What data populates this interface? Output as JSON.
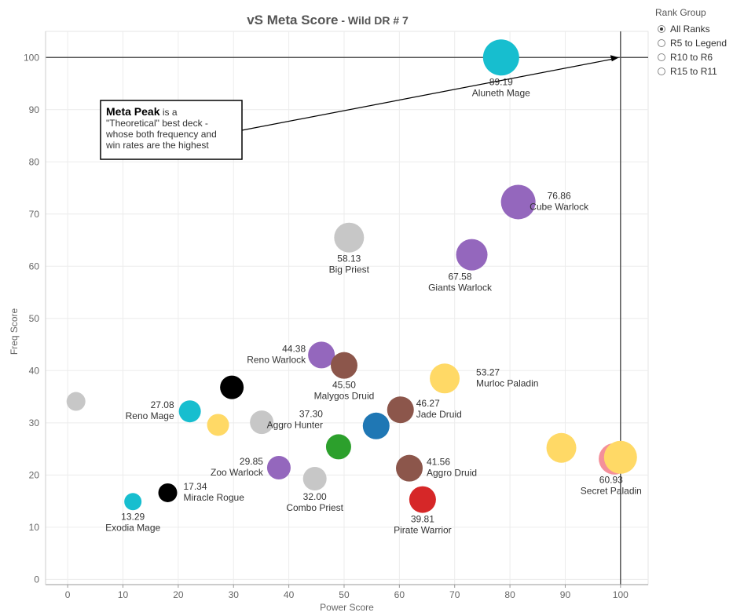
{
  "title": {
    "main": "vS Meta Score",
    "sub": " - Wild DR # 7"
  },
  "legend": {
    "title": "Rank Group",
    "options": [
      {
        "label": "All Ranks",
        "selected": true
      },
      {
        "label": "R5 to Legend",
        "selected": false
      },
      {
        "label": "R10 to R6",
        "selected": false
      },
      {
        "label": "R15 to R11",
        "selected": false
      }
    ]
  },
  "annotation": {
    "bold": "Meta Peak",
    "lines": [
      " is a",
      "\"Theoretical\" best deck -",
      "whose both frequency and",
      "win rates are the highest"
    ]
  },
  "chart_data": {
    "type": "scatter",
    "xlabel": "Power Score",
    "ylabel": "Freq Score",
    "xlim": [
      -4,
      105
    ],
    "ylim": [
      -1,
      105
    ],
    "xticks": [
      0,
      10,
      20,
      30,
      40,
      50,
      60,
      70,
      80,
      90,
      100
    ],
    "yticks": [
      0,
      10,
      20,
      30,
      40,
      50,
      60,
      70,
      80,
      90,
      100
    ],
    "grid": true,
    "reference_lines": {
      "x": 100,
      "y": 100
    },
    "colors": {
      "cyan": "#17becf",
      "purple": "#9467bd",
      "brown": "#8c564b",
      "gray": "#c7c7c7",
      "black": "#000000",
      "yellow": "#ffd966",
      "blue": "#1f77b4",
      "green": "#2ca02c",
      "red": "#d62728",
      "pink": "#f4909a"
    },
    "points": [
      {
        "x": 1.5,
        "y": 34.1,
        "color": "gray",
        "size": 12,
        "value": "",
        "name": ""
      },
      {
        "x": 11.8,
        "y": 14.9,
        "color": "cyan",
        "size": 11,
        "value": "13.29",
        "name": "Exodia Mage"
      },
      {
        "x": 18.1,
        "y": 16.6,
        "color": "black",
        "size": 12,
        "value": "17.34",
        "name": "Miracle Rogue"
      },
      {
        "x": 22.1,
        "y": 32.2,
        "color": "cyan",
        "size": 14,
        "value": "27.08",
        "name": "Reno Mage"
      },
      {
        "x": 27.2,
        "y": 29.6,
        "color": "yellow",
        "size": 14,
        "value": "",
        "name": ""
      },
      {
        "x": 29.7,
        "y": 36.8,
        "color": "black",
        "size": 15,
        "value": "",
        "name": ""
      },
      {
        "x": 35.1,
        "y": 30.1,
        "color": "gray",
        "size": 15,
        "value": "",
        "name": ""
      },
      {
        "x": 38.2,
        "y": 21.4,
        "color": "purple",
        "size": 15,
        "value": "29.85",
        "name": "Zoo Warlock"
      },
      {
        "x": 44.7,
        "y": 19.3,
        "color": "gray",
        "size": 15,
        "value": "32.00",
        "name": "Combo Priest"
      },
      {
        "x": 45.9,
        "y": 43.0,
        "color": "purple",
        "size": 17,
        "value": "44.38",
        "name": "Reno Warlock"
      },
      {
        "x": 49.0,
        "y": 25.4,
        "color": "green",
        "size": 16,
        "value": "37.30",
        "name": "Aggro Hunter"
      },
      {
        "x": 50.0,
        "y": 41.0,
        "color": "brown",
        "size": 17,
        "value": "45.50",
        "name": "Malygos Druid"
      },
      {
        "x": 50.9,
        "y": 65.5,
        "color": "gray",
        "size": 19,
        "value": "58.13",
        "name": "Big Priest"
      },
      {
        "x": 55.8,
        "y": 29.4,
        "color": "blue",
        "size": 17,
        "value": "",
        "name": ""
      },
      {
        "x": 60.2,
        "y": 32.5,
        "color": "brown",
        "size": 17,
        "value": "46.27",
        "name": "Jade Druid"
      },
      {
        "x": 61.8,
        "y": 21.3,
        "color": "brown",
        "size": 17,
        "value": "41.56",
        "name": "Aggro Druid"
      },
      {
        "x": 64.2,
        "y": 15.3,
        "color": "red",
        "size": 17,
        "value": "39.81",
        "name": "Pirate Warrior"
      },
      {
        "x": 68.2,
        "y": 38.5,
        "color": "yellow",
        "size": 19,
        "value": "53.27",
        "name": "Murloc Paladin"
      },
      {
        "x": 73.1,
        "y": 62.2,
        "color": "purple",
        "size": 20,
        "value": "67.58",
        "name": "Giants Warlock"
      },
      {
        "x": 78.4,
        "y": 100.0,
        "color": "cyan",
        "size": 23,
        "value": "89.19",
        "name": "Aluneth Mage"
      },
      {
        "x": 81.5,
        "y": 72.3,
        "color": "purple",
        "size": 22,
        "value": "76.86",
        "name": "Cube Warlock"
      },
      {
        "x": 89.3,
        "y": 25.2,
        "color": "yellow",
        "size": 19,
        "value": "",
        "name": ""
      },
      {
        "x": 98.9,
        "y": 23.1,
        "color": "pink",
        "size": 20,
        "value": "",
        "name": ""
      },
      {
        "x": 100.0,
        "y": 23.4,
        "color": "yellow",
        "size": 21,
        "value": "60.93",
        "name": "Secret Paladin"
      }
    ]
  }
}
